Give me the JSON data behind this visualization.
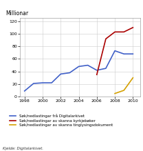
{
  "title": "Millionar",
  "source": "Kjelde: Digitalarkivet.",
  "years_blue": [
    1998,
    1999,
    2000,
    2001,
    2002,
    2003,
    2004,
    2005,
    2006,
    2007,
    2008,
    2009,
    2010
  ],
  "values_blue": [
    9,
    21,
    22,
    22,
    36,
    38,
    48,
    50,
    42,
    45,
    73,
    68,
    68
  ],
  "years_red": [
    2006,
    2007,
    2008,
    2009,
    2010
  ],
  "values_red": [
    35,
    92,
    103,
    103,
    110
  ],
  "years_orange": [
    2008,
    2009,
    2010
  ],
  "values_orange": [
    5,
    10,
    30
  ],
  "color_blue": "#4060c8",
  "color_red": "#aa0000",
  "color_orange": "#d4a000",
  "xlim": [
    1997.5,
    2010.8
  ],
  "ylim": [
    0,
    125
  ],
  "yticks": [
    0,
    20,
    40,
    60,
    80,
    100,
    120
  ],
  "xticks": [
    1998,
    2000,
    2002,
    2004,
    2006,
    2008,
    2010
  ],
  "legend_blue": "Søk/nedlastingar frå Digitalarkivet",
  "legend_red": "Søk/nedlastingar av skanna kyrkjebøker",
  "legend_orange": "Søk/nedlastingar av skanna tinglysingsdokument"
}
